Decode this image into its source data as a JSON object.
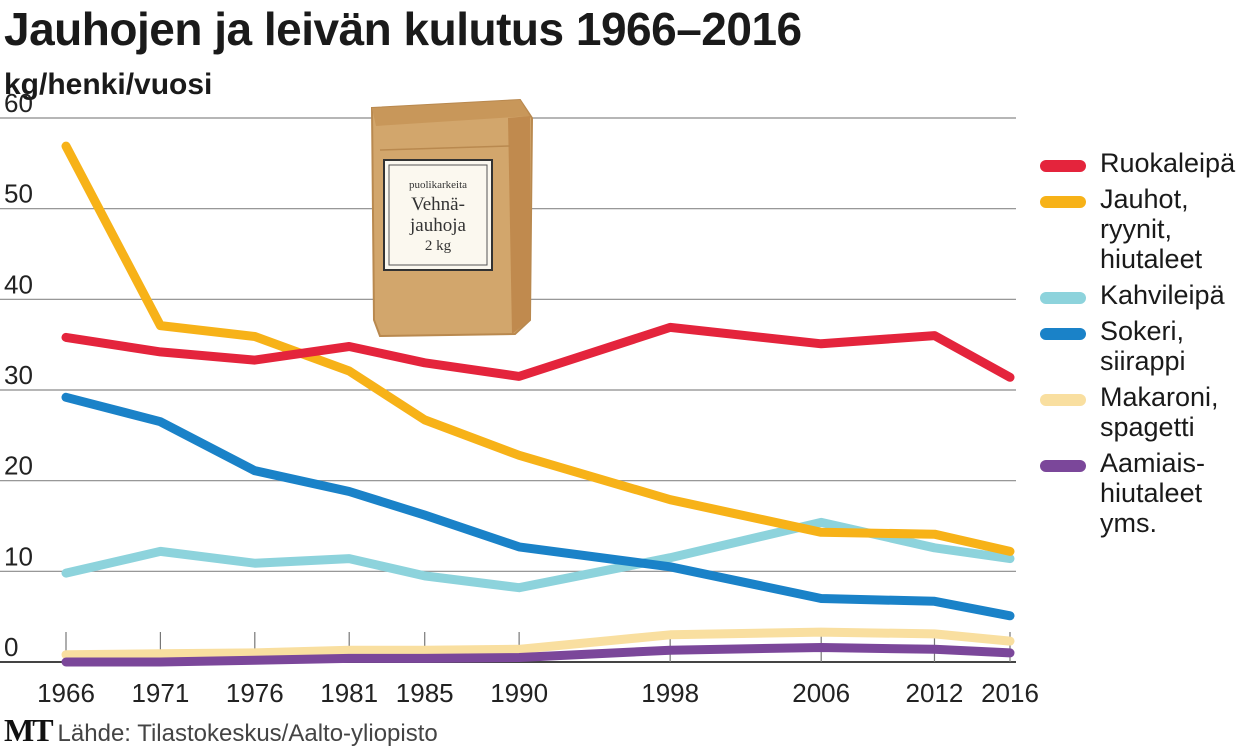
{
  "title": "Jauhojen ja leivän kulutus 1966–2016",
  "unit_label": "kg/henki/vuosi",
  "source": "Lähde: Tilastokeskus/Aalto-yliopisto",
  "logo": "MT",
  "illustration": {
    "line1": "puolikarkeita",
    "line2": "Vehnä-",
    "line3": "jauhoja",
    "line4": "2 kg"
  },
  "chart_data": {
    "type": "line",
    "ylim": [
      0,
      60
    ],
    "yticks": [
      0,
      10,
      20,
      30,
      40,
      50,
      60
    ],
    "xlim": [
      1966,
      2016
    ],
    "xticks": [
      1966,
      1971,
      1976,
      1981,
      1985,
      1990,
      1998,
      2006,
      2012,
      2016
    ],
    "grid": true,
    "legend_position": "right",
    "series": [
      {
        "name": "Ruokaleipä",
        "color": "#e4243c",
        "x": [
          1966,
          1971,
          1976,
          1981,
          1985,
          1990,
          1998,
          2006,
          2012,
          2016
        ],
        "y": [
          35.8,
          34.2,
          33.3,
          34.8,
          33.0,
          31.5,
          36.9,
          35.1,
          36.0,
          31.4
        ]
      },
      {
        "name": "Jauhot,\nryynit,\nhiutaleet",
        "color": "#f7b218",
        "x": [
          1966,
          1971,
          1976,
          1981,
          1985,
          1990,
          1998,
          2006,
          2012,
          2016
        ],
        "y": [
          56.9,
          37.1,
          35.9,
          32.1,
          26.7,
          22.8,
          17.9,
          14.3,
          14.1,
          12.2
        ]
      },
      {
        "name": "Kahvileipä",
        "color": "#8dd3dc",
        "x": [
          1966,
          1971,
          1976,
          1981,
          1985,
          1990,
          1998,
          2006,
          2012,
          2016
        ],
        "y": [
          9.8,
          12.2,
          10.9,
          11.4,
          9.5,
          8.2,
          11.5,
          15.4,
          12.6,
          11.4
        ]
      },
      {
        "name": "Sokeri,\nsiirappi",
        "color": "#1a82c8",
        "x": [
          1966,
          1971,
          1976,
          1981,
          1985,
          1990,
          1998,
          2006,
          2012,
          2016
        ],
        "y": [
          29.2,
          26.5,
          21.1,
          18.8,
          16.2,
          12.7,
          10.5,
          7.0,
          6.7,
          5.1
        ]
      },
      {
        "name": "Makaroni,\nspagetti",
        "color": "#f9dfa0",
        "x": [
          1966,
          1971,
          1976,
          1981,
          1985,
          1990,
          1998,
          2006,
          2012,
          2016
        ],
        "y": [
          0.8,
          0.9,
          1.0,
          1.3,
          1.3,
          1.4,
          3.0,
          3.3,
          3.1,
          2.3
        ]
      },
      {
        "name": "Aamiais-\nhiutaleet\nyms.",
        "color": "#7b479a",
        "x": [
          1966,
          1971,
          1976,
          1981,
          1985,
          1990,
          1998,
          2006,
          2012,
          2016
        ],
        "y": [
          0.0,
          0.0,
          0.2,
          0.4,
          0.4,
          0.5,
          1.3,
          1.6,
          1.4,
          1.0
        ]
      }
    ]
  }
}
